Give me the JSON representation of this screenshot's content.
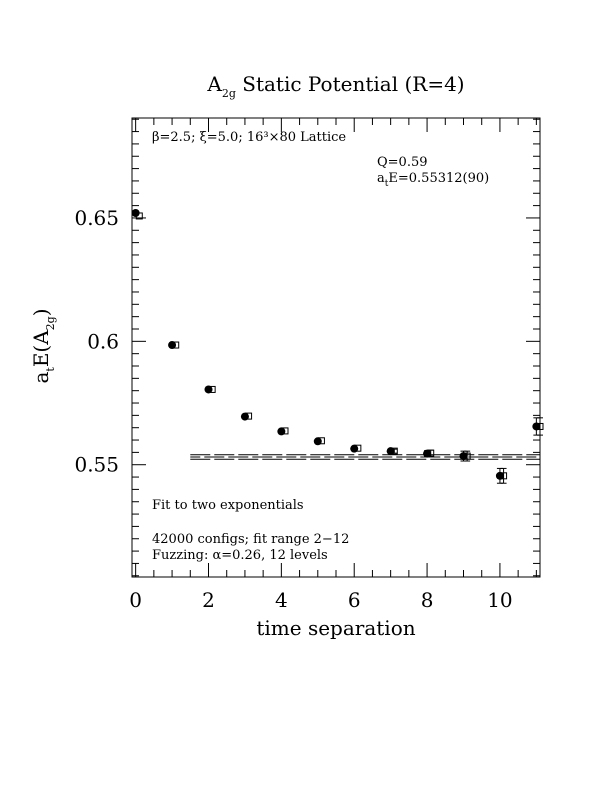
{
  "chart_data": {
    "type": "scatter",
    "title": {
      "main": "A",
      "main_sub": "2g",
      "rest": " Static Potential (R=4)"
    },
    "xlabel": "time separation",
    "ylabel": {
      "a": "a",
      "a_sub": "t",
      "mid": "E(A",
      "mid_sub": "2g",
      "end": ")"
    },
    "xlim": [
      -0.1,
      11.1
    ],
    "ylim": [
      0.5045,
      0.6905
    ],
    "xticks": [
      0,
      2,
      4,
      6,
      8,
      10
    ],
    "yticks": [
      0.55,
      0.6,
      0.65
    ],
    "xtick_labels": [
      "0",
      "2",
      "4",
      "6",
      "8",
      "10"
    ],
    "ytick_labels": [
      "0.55",
      "0.6",
      "0.65"
    ],
    "series": [
      {
        "marker": "filled-circle",
        "x": [
          0,
          1,
          2,
          3,
          4,
          5,
          6,
          7,
          8,
          9,
          10,
          11
        ],
        "y": [
          0.652,
          0.5985,
          0.5805,
          0.5695,
          0.5635,
          0.5595,
          0.5565,
          0.5555,
          0.5545,
          0.5535,
          0.5455,
          0.5655
        ],
        "yerr": [
          0.0003,
          0.0003,
          0.0003,
          0.0004,
          0.0004,
          0.0005,
          0.0006,
          0.0008,
          0.0012,
          0.002,
          0.003,
          0.0035
        ]
      },
      {
        "marker": "open-square",
        "x": [
          0.1,
          1.1,
          2.1,
          3.1,
          4.1,
          5.1,
          6.1,
          7.1,
          8.1,
          9.1,
          10.1,
          11.1
        ],
        "y": [
          0.6508,
          0.5985,
          0.5805,
          0.5697,
          0.5637,
          0.5597,
          0.5567,
          0.5555,
          0.5547,
          0.5535,
          0.5455,
          0.5655
        ],
        "yerr": [
          0.0003,
          0.0003,
          0.0003,
          0.0004,
          0.0004,
          0.0005,
          0.0006,
          0.0008,
          0.0012,
          0.002,
          0.003,
          0.0035
        ]
      }
    ],
    "fit": {
      "x_start": 1.5,
      "x_end": 11.1,
      "value": 0.55312,
      "error": 0.0009
    },
    "annotations": {
      "lattice": "β=2.5; ξ=5.0; 16³×80 Lattice",
      "q": "Q=0.59",
      "energy_pre": "a",
      "energy_sub": "t",
      "energy_post": "E=0.55312(90)",
      "fit_desc": "Fit to two exponentials",
      "configs": "42000 configs; fit range 2−12",
      "fuzzing": "Fuzzing: α=0.26, 12 levels"
    }
  }
}
